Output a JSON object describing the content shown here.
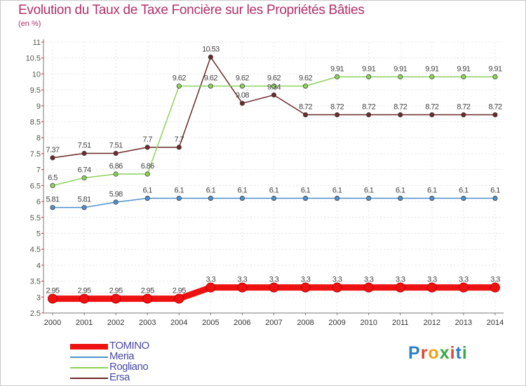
{
  "title": "Evolution du Taux de Taxe Foncière sur les Propriétés Bâties",
  "subtitle": "(en %)",
  "logo": {
    "text": "Proxiti",
    "colors": [
      "#2e7fc4",
      "#e2462f",
      "#f0a01c",
      "#3aa845",
      "#e2462f",
      "#2e7fc4",
      "#3aa845"
    ]
  },
  "chart_data": {
    "type": "line",
    "title": "Evolution du Taux de Taxe Foncière sur les Propriétés Bâties",
    "ylabel": "(en %)",
    "xlabel": "",
    "x": [
      "2000",
      "2001",
      "2002",
      "2003",
      "2004",
      "2005",
      "2006",
      "2007",
      "2008",
      "2009",
      "2010",
      "2011",
      "2012",
      "2013",
      "2014"
    ],
    "ylim": [
      2.5,
      11
    ],
    "yticks": [
      "2.5",
      "3",
      "3.5",
      "4",
      "4.5",
      "5",
      "5.5",
      "6",
      "6.5",
      "7",
      "7.5",
      "8",
      "8.5",
      "9",
      "9.5",
      "10",
      "10.5",
      "11"
    ],
    "legend_position": "bottom-left",
    "series": [
      {
        "name": "TOMINO",
        "color": "#ee1111",
        "values": [
          2.95,
          2.95,
          2.95,
          2.95,
          2.95,
          3.3,
          3.3,
          3.3,
          3.3,
          3.3,
          3.3,
          3.3,
          3.3,
          3.3,
          3.3
        ],
        "labels": [
          "2.95",
          "2.95",
          "2.95",
          "2.95",
          "2.95",
          "3.3",
          "3.3",
          "3.3",
          "3.3",
          "3.3",
          "3.3",
          "3.3",
          "3.3",
          "3.3",
          "3.3"
        ],
        "highlight": true
      },
      {
        "name": "Meria",
        "color": "#4f8fc9",
        "values": [
          5.81,
          5.81,
          5.98,
          6.1,
          6.1,
          6.1,
          6.1,
          6.1,
          6.1,
          6.1,
          6.1,
          6.1,
          6.1,
          6.1,
          6.1
        ],
        "labels": [
          "5.81",
          "5.81",
          "5.98",
          "6.1",
          "6.1",
          "6.1",
          "6.1",
          "6.1",
          "6.1",
          "6.1",
          "6.1",
          "6.1",
          "6.1",
          "6.1",
          "6.1"
        ]
      },
      {
        "name": "Rogliano",
        "color": "#8cd25a",
        "values": [
          6.5,
          6.74,
          6.86,
          6.86,
          9.62,
          9.62,
          9.62,
          9.62,
          9.62,
          9.91,
          9.91,
          9.91,
          9.91,
          9.91,
          9.91
        ],
        "labels": [
          "6.5",
          "6.74",
          "6.86",
          "6.86",
          "9.62",
          "9.62",
          "9.62",
          "9.62",
          "9.62",
          "9.91",
          "9.91",
          "9.91",
          "9.91",
          "9.91",
          "9.91"
        ]
      },
      {
        "name": "Ersa",
        "color": "#6b2a2a",
        "values": [
          7.37,
          7.51,
          7.51,
          7.7,
          7.7,
          10.53,
          9.08,
          9.34,
          8.72,
          8.72,
          8.72,
          8.72,
          8.72,
          8.72,
          8.72
        ],
        "labels": [
          "7.37",
          "7.51",
          "7.51",
          "7.7",
          "7.7",
          "10.53",
          "9.08",
          "9.34",
          "8.72",
          "8.72",
          "8.72",
          "8.72",
          "8.72",
          "8.72",
          "8.72"
        ]
      }
    ]
  }
}
